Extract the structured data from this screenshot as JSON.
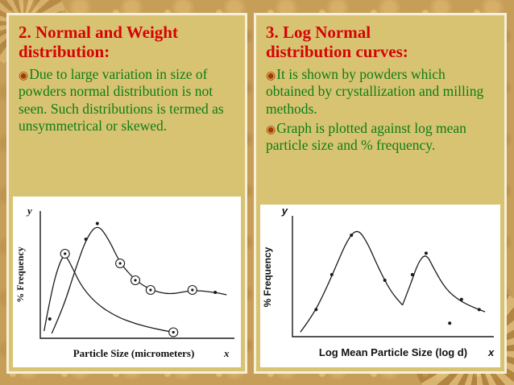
{
  "slide": {
    "background_color": "#c79e58",
    "panel_color": "#d8c372",
    "panel_border_color": "#f6efd9",
    "title_color": "#d40404",
    "body_color": "#0e7d15",
    "bullet_icon": "circled-dot-bullet",
    "bullet_glyph": "◉",
    "panels": [
      {
        "title": "2. Normal and Weight distribution:",
        "bullets": [
          "Due to large variation in size of powders normal distribution is not seen. Such distributions is termed as unsymmetrical or skewed."
        ]
      },
      {
        "title": "3. Log Normal distribution curves:",
        "bullets": [
          "It is shown by powders which obtained by crystallization and milling methods.",
          "Graph is plotted against log mean particle size and % frequency."
        ]
      }
    ]
  },
  "chart_data": [
    {
      "type": "line",
      "title": "",
      "xlabel": "Particle Size (micrometers)",
      "ylabel": "% Frequency",
      "corner_x": "x",
      "corner_y": "y",
      "legend": "none",
      "grid": false,
      "series": [
        {
          "name": "normal-distribution-curve",
          "points": [
            [
              0.06,
              0.04
            ],
            [
              0.12,
              0.25
            ],
            [
              0.18,
              0.55
            ],
            [
              0.24,
              0.82
            ],
            [
              0.3,
              0.95
            ],
            [
              0.36,
              0.82
            ],
            [
              0.42,
              0.62
            ],
            [
              0.5,
              0.48
            ],
            [
              0.58,
              0.4
            ],
            [
              0.68,
              0.36
            ],
            [
              0.8,
              0.4
            ],
            [
              0.92,
              0.38
            ],
            [
              0.98,
              0.36
            ]
          ]
        },
        {
          "name": "weight-distribution-curve",
          "points": [
            [
              0.02,
              0.06
            ],
            [
              0.06,
              0.4
            ],
            [
              0.1,
              0.62
            ],
            [
              0.13,
              0.7
            ],
            [
              0.17,
              0.58
            ],
            [
              0.22,
              0.42
            ],
            [
              0.3,
              0.28
            ],
            [
              0.4,
              0.18
            ],
            [
              0.5,
              0.12
            ],
            [
              0.6,
              0.08
            ],
            [
              0.7,
              0.05
            ]
          ]
        }
      ],
      "circled_markers": [
        [
          0.13,
          0.7
        ],
        [
          0.42,
          0.62
        ],
        [
          0.5,
          0.48
        ],
        [
          0.58,
          0.4
        ],
        [
          0.8,
          0.4
        ],
        [
          0.7,
          0.05
        ]
      ],
      "dots": [
        [
          0.05,
          0.16
        ],
        [
          0.24,
          0.82
        ],
        [
          0.3,
          0.95
        ],
        [
          0.92,
          0.38
        ]
      ]
    },
    {
      "type": "line",
      "title": "",
      "xlabel": "Log Mean Particle Size (log d)",
      "ylabel": "% Frequency",
      "corner_x": "x",
      "corner_y": "y",
      "legend": "none",
      "grid": false,
      "series": [
        {
          "name": "log-normal-curve-1",
          "points": [
            [
              0.04,
              0.04
            ],
            [
              0.1,
              0.18
            ],
            [
              0.16,
              0.38
            ],
            [
              0.22,
              0.62
            ],
            [
              0.28,
              0.86
            ],
            [
              0.33,
              0.96
            ],
            [
              0.38,
              0.84
            ],
            [
              0.44,
              0.6
            ],
            [
              0.5,
              0.4
            ],
            [
              0.56,
              0.28
            ]
          ]
        },
        {
          "name": "log-normal-curve-2",
          "points": [
            [
              0.56,
              0.28
            ],
            [
              0.6,
              0.46
            ],
            [
              0.64,
              0.66
            ],
            [
              0.68,
              0.74
            ],
            [
              0.72,
              0.6
            ],
            [
              0.78,
              0.42
            ],
            [
              0.85,
              0.32
            ],
            [
              0.92,
              0.26
            ],
            [
              0.98,
              0.22
            ]
          ]
        }
      ],
      "circled_markers": [],
      "dots": [
        [
          0.12,
          0.24
        ],
        [
          0.2,
          0.55
        ],
        [
          0.3,
          0.9
        ],
        [
          0.47,
          0.5
        ],
        [
          0.61,
          0.55
        ],
        [
          0.68,
          0.74
        ],
        [
          0.8,
          0.12
        ],
        [
          0.86,
          0.33
        ],
        [
          0.95,
          0.24
        ]
      ]
    }
  ]
}
